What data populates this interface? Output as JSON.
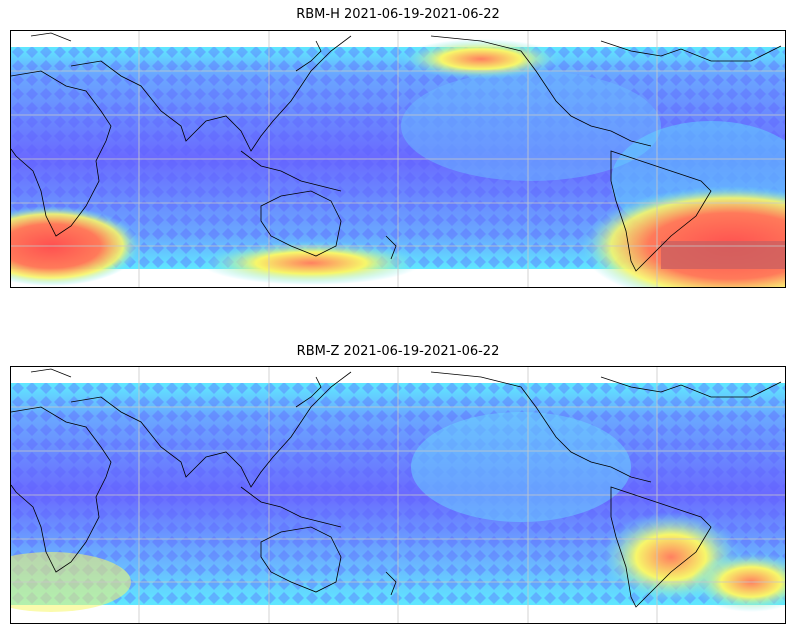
{
  "panels": [
    {
      "title": "RBM-H 2021-06-19-2021-06-22"
    },
    {
      "title": "RBM-Z 2021-06-19-2021-06-22"
    }
  ],
  "colormap": [
    "#6a6aff",
    "#5fe8ff",
    "#f7f76a",
    "#ff6060"
  ]
}
